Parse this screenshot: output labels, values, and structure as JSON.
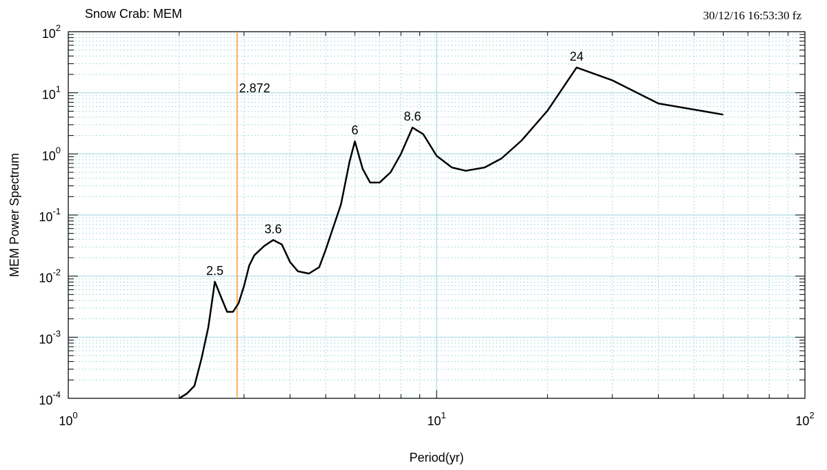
{
  "chart_data": {
    "type": "line",
    "title": "Snow Crab: MEM",
    "timestamp": "30/12/16  16:53:30 fz",
    "xlabel": "Period(yr)",
    "ylabel": "MEM Power Spectrum",
    "xscale": "log",
    "yscale": "log",
    "grid": true,
    "color": "#000000",
    "x": [
      2.0,
      2.1,
      2.2,
      2.3,
      2.4,
      2.5,
      2.6,
      2.7,
      2.8,
      2.9,
      3.0,
      3.1,
      3.2,
      3.4,
      3.6,
      3.8,
      4.0,
      4.2,
      4.5,
      4.8,
      5.0,
      5.5,
      5.8,
      6.0,
      6.3,
      6.6,
      7.0,
      7.5,
      8.0,
      8.6,
      9.2,
      10,
      11,
      12,
      13.5,
      15,
      17,
      20,
      24,
      30,
      40,
      60
    ],
    "values": [
      0.0001,
      0.00012,
      0.00016,
      0.00045,
      0.00145,
      0.0081,
      0.0045,
      0.0026,
      0.0026,
      0.0036,
      0.0069,
      0.015,
      0.022,
      0.031,
      0.039,
      0.033,
      0.017,
      0.012,
      0.011,
      0.014,
      0.027,
      0.15,
      0.74,
      1.6,
      0.57,
      0.34,
      0.34,
      0.5,
      1.0,
      2.7,
      2.1,
      0.93,
      0.6,
      0.53,
      0.6,
      0.84,
      1.65,
      5.1,
      26,
      16,
      6.7,
      4.4
    ],
    "xlim": [
      1,
      100
    ],
    "ylim": [
      0.0001,
      100
    ],
    "xticks": [
      {
        "value": 1,
        "label": {
          "base": "10",
          "exponent": "0"
        }
      },
      {
        "value": 10,
        "label": {
          "base": "10",
          "exponent": "1"
        }
      },
      {
        "value": 100,
        "label": {
          "base": "10",
          "exponent": "2"
        }
      }
    ],
    "yticks": [
      {
        "value": 0.0001,
        "label": {
          "base": "10",
          "exponent": "-4"
        }
      },
      {
        "value": 0.001,
        "label": {
          "base": "10",
          "exponent": "-3"
        }
      },
      {
        "value": 0.01,
        "label": {
          "base": "10",
          "exponent": "-2"
        }
      },
      {
        "value": 0.1,
        "label": {
          "base": "10",
          "exponent": "-1"
        }
      },
      {
        "value": 1,
        "label": {
          "base": "10",
          "exponent": "0"
        }
      },
      {
        "value": 10,
        "label": {
          "base": "10",
          "exponent": "1"
        }
      },
      {
        "value": 100,
        "label": {
          "base": "10",
          "exponent": "2"
        }
      }
    ],
    "xminorticks": [
      2,
      3,
      4,
      5,
      6,
      7,
      8,
      9,
      20,
      30,
      40,
      50,
      60,
      70,
      80,
      90
    ],
    "yminorticks": [
      0.0002,
      0.0003,
      0.0004,
      0.0005,
      0.0006,
      0.0007,
      0.0008,
      0.0009,
      0.002,
      0.003,
      0.004,
      0.005,
      0.006,
      0.007,
      0.008,
      0.009,
      0.02,
      0.03,
      0.04,
      0.05,
      0.06,
      0.07,
      0.08,
      0.09,
      0.2,
      0.3,
      0.4,
      0.5,
      0.6,
      0.7,
      0.8,
      0.9,
      2,
      3,
      4,
      5,
      6,
      7,
      8,
      9,
      20,
      30,
      40,
      50,
      60,
      70,
      80,
      90
    ],
    "vline": {
      "value": 2.872,
      "color": "#f39a2c"
    },
    "annotations": [
      {
        "text": "2.5",
        "x": 2.5
      },
      {
        "text": "3.6",
        "x": 3.6
      },
      {
        "text": "6",
        "x": 6.0
      },
      {
        "text": "8.6",
        "x": 8.6
      },
      {
        "text": "24",
        "x": 24
      }
    ]
  }
}
